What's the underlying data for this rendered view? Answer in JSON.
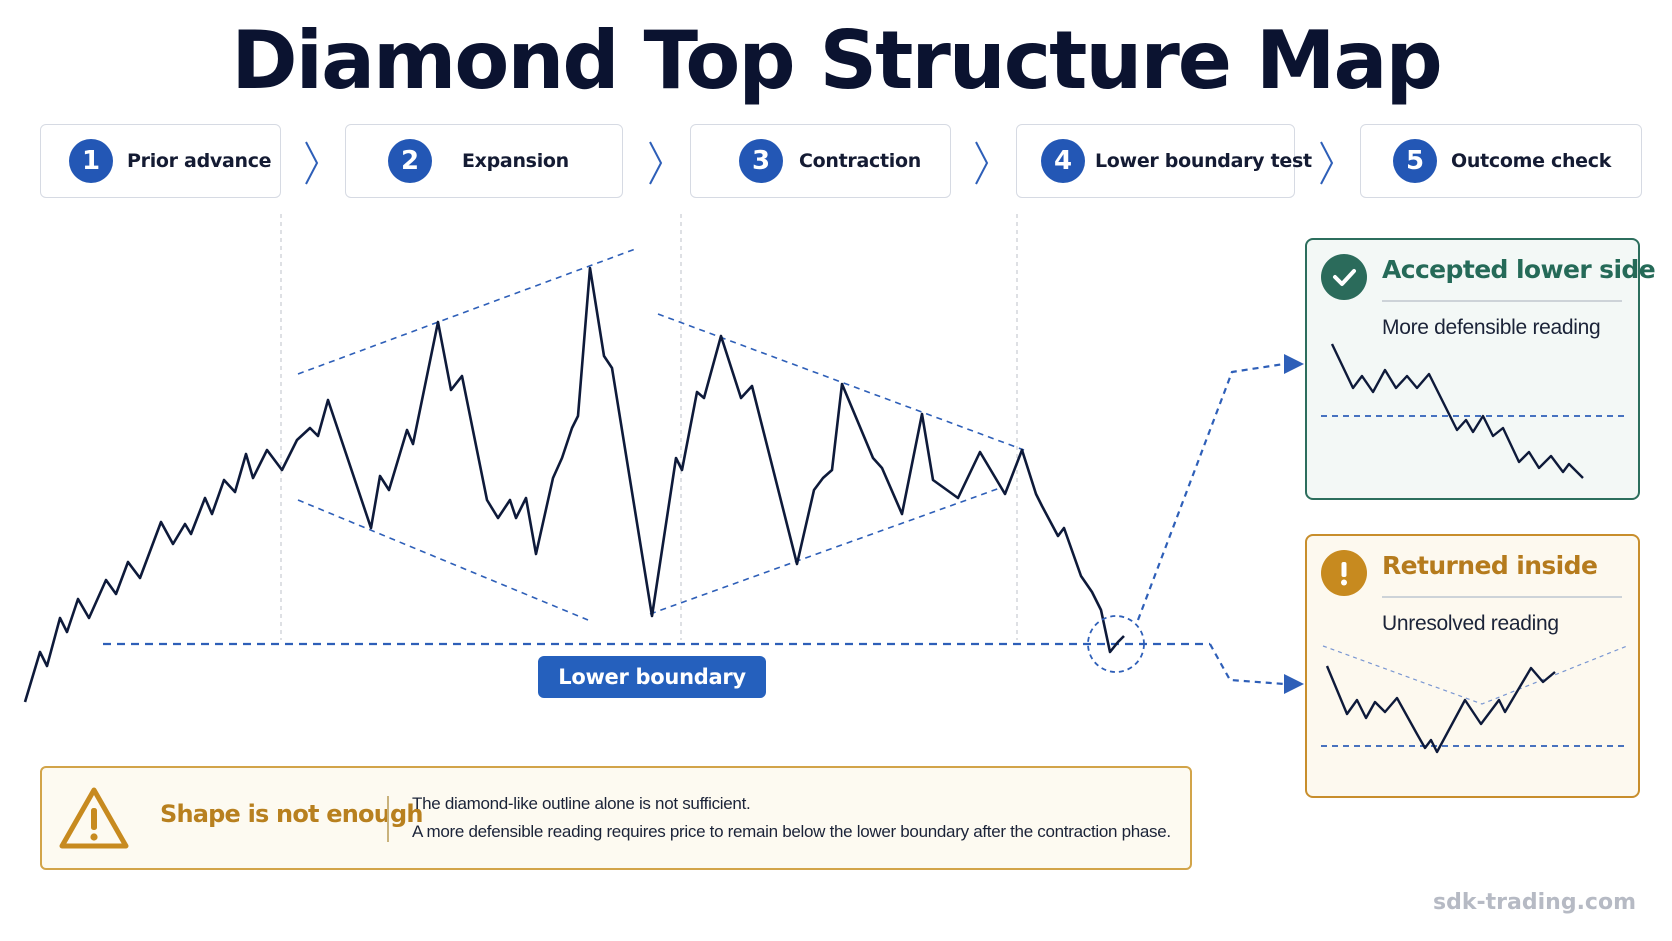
{
  "title": "Diamond Top Structure Map",
  "steps": [
    {
      "number": "1",
      "label": "Prior advance"
    },
    {
      "number": "2",
      "label": "Expansion"
    },
    {
      "number": "3",
      "label": "Contraction"
    },
    {
      "number": "4",
      "label": "Lower boundary test"
    },
    {
      "number": "5",
      "label": "Outcome check"
    }
  ],
  "chart": {
    "lower_boundary_label": "Lower boundary",
    "line_color": "#0e1a3a",
    "guide_color": "#2e5fb8"
  },
  "outcomes": {
    "accepted": {
      "title": "Accepted lower side",
      "subtitle": "More defensible reading",
      "icon": "check-circle-icon",
      "color": "#2b6b5b"
    },
    "returned": {
      "title": "Returned inside",
      "subtitle": "Unresolved reading",
      "icon": "exclamation-circle-icon",
      "color": "#c78a1f"
    }
  },
  "warning": {
    "title": "Shape is not enough",
    "line1": "The diamond-like outline alone is not sufficient.",
    "line2": "A more defensible reading requires price to remain below the lower boundary after the contraction phase.",
    "icon": "warning-triangle-icon"
  },
  "footer": "sdk-trading.com"
}
